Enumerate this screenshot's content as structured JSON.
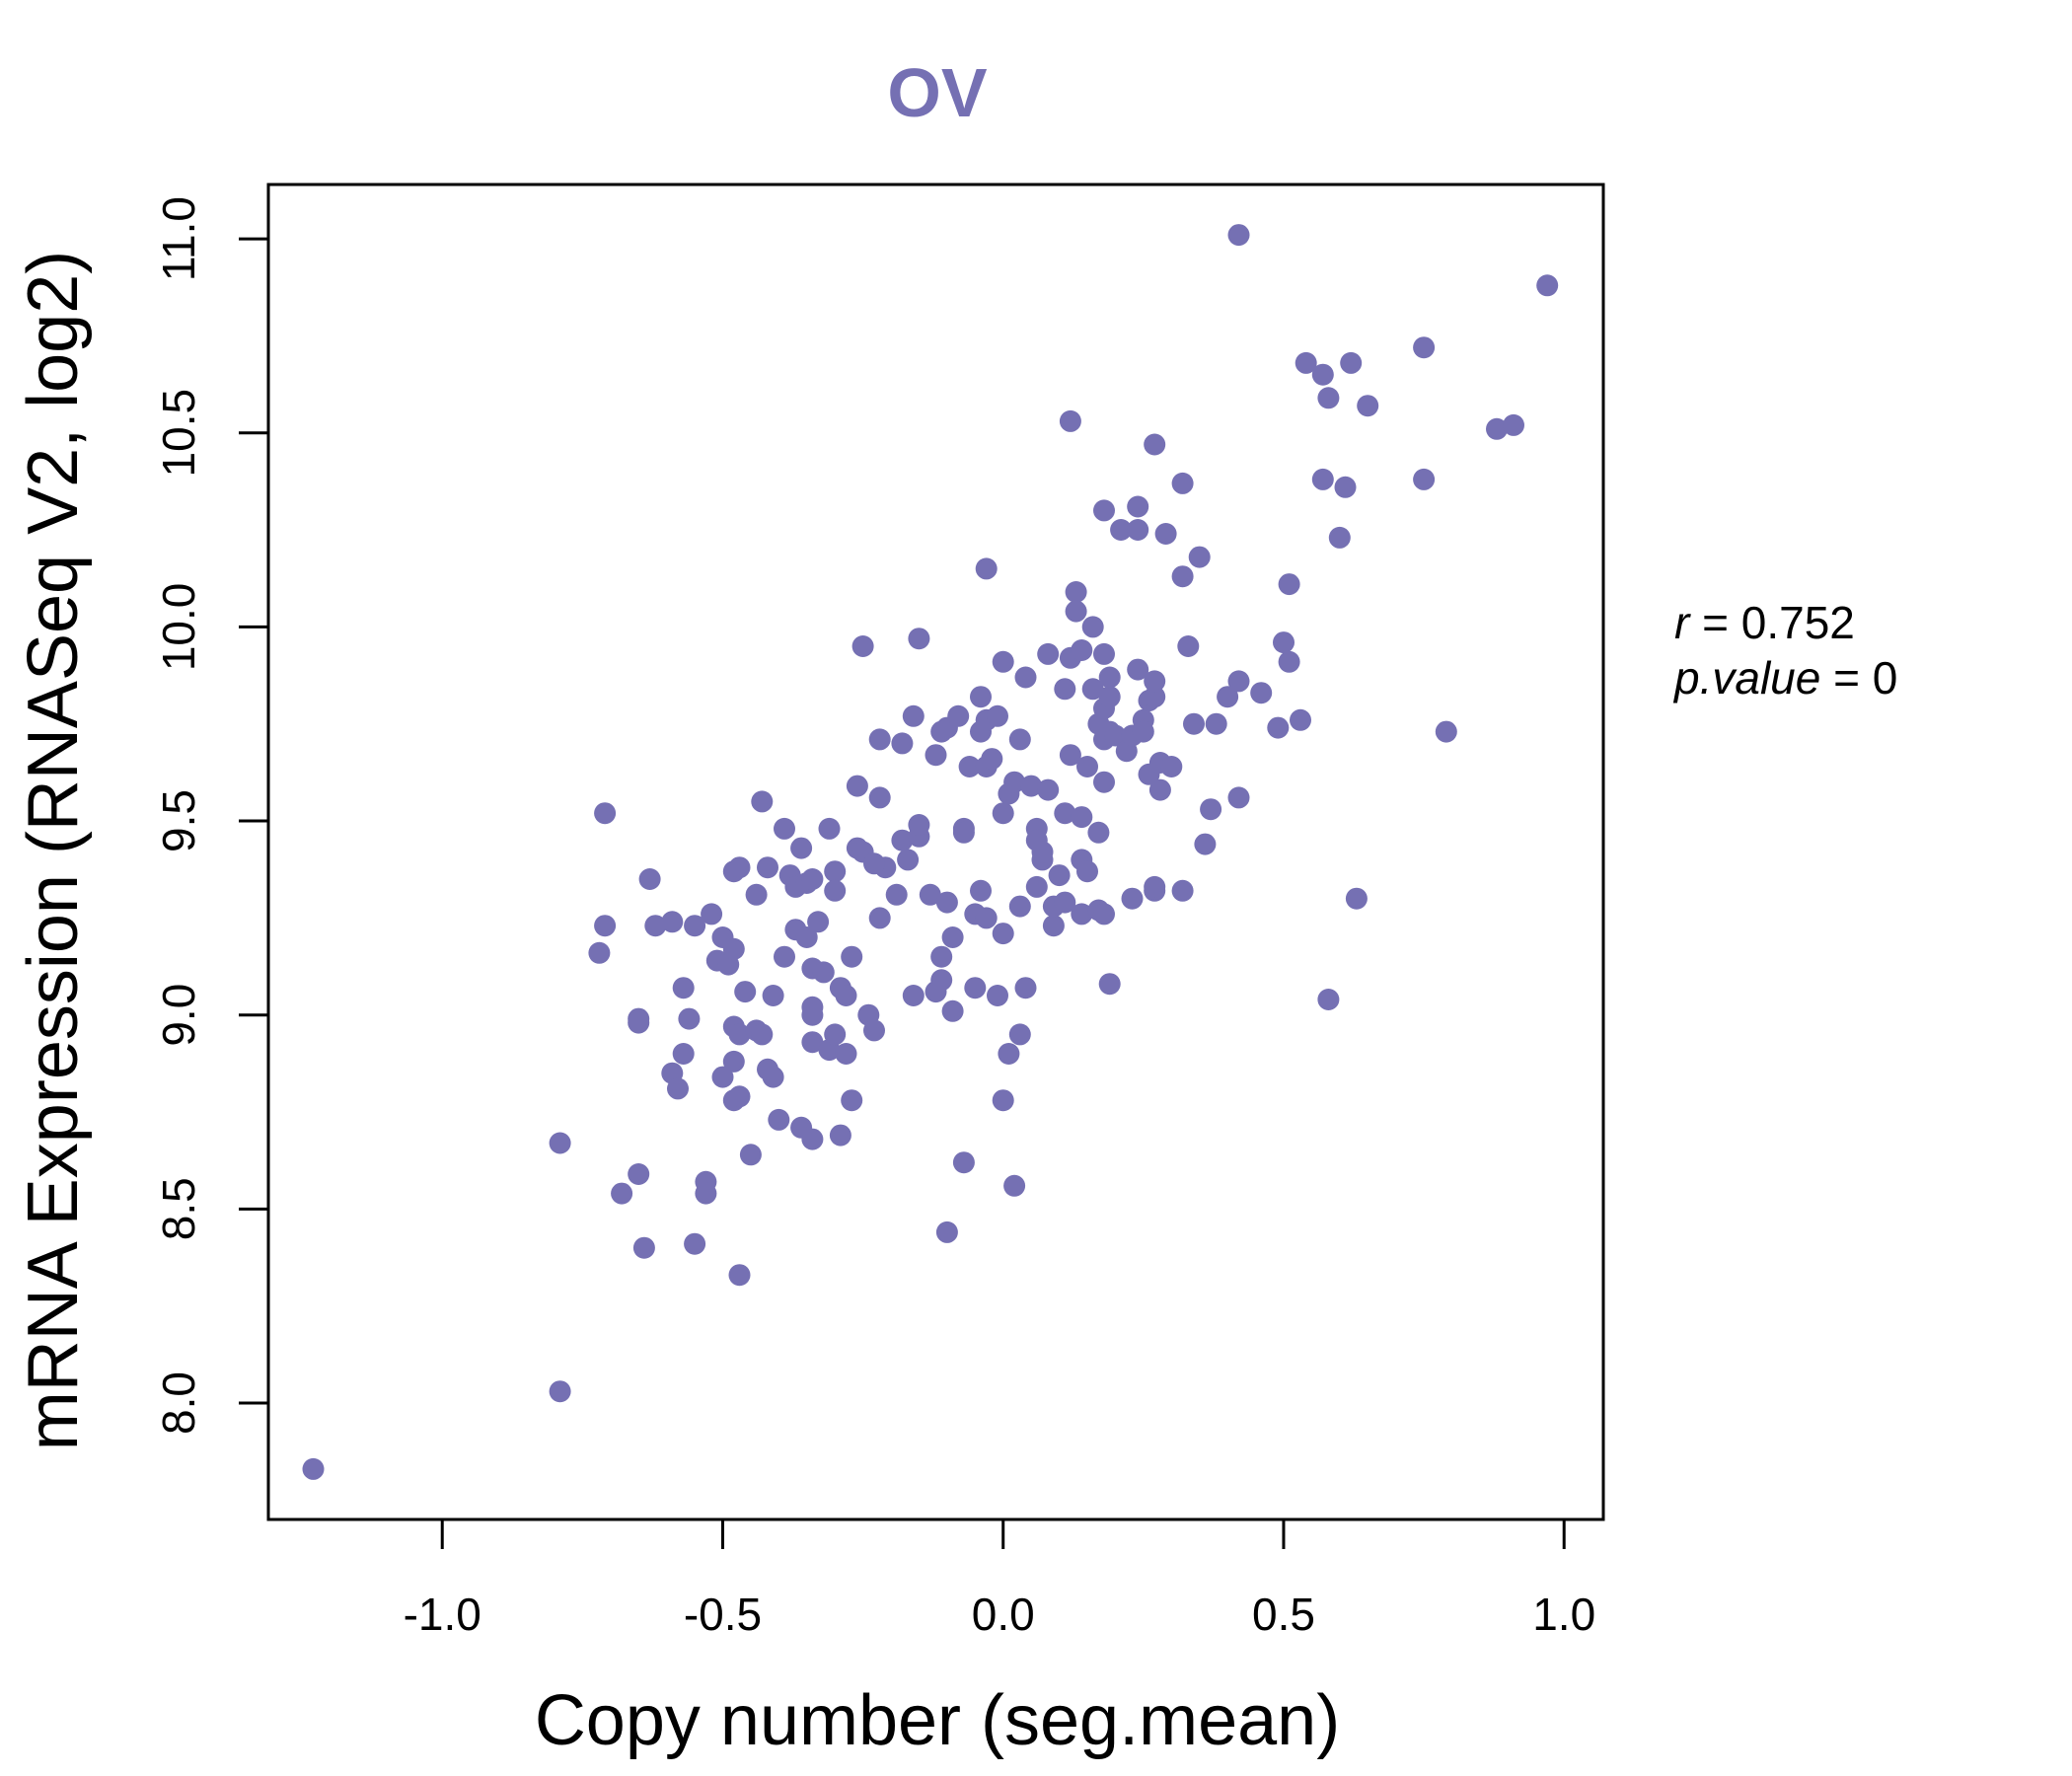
{
  "chart_data": {
    "type": "scatter",
    "title": "OV",
    "xlabel": "Copy number (seg.mean)",
    "ylabel": "mRNA Expression (RNASeq V2, log2)",
    "xlim": [
      -1.31,
      1.07
    ],
    "ylim": [
      7.7,
      11.14
    ],
    "xticks": [
      -1.0,
      -0.5,
      0.0,
      0.5,
      1.0
    ],
    "xtick_labels": [
      "-1.0",
      "-0.5",
      "0.0",
      "0.5",
      "1.0"
    ],
    "yticks": [
      8.0,
      8.5,
      9.0,
      9.5,
      10.0,
      10.5,
      11.0
    ],
    "ytick_labels": [
      "8.0",
      "8.5",
      "9.0",
      "9.5",
      "10.0",
      "10.5",
      "11.0"
    ],
    "grid": false,
    "color": "#7570b3",
    "stats": {
      "r_label": "r",
      "r_value": "0.752",
      "p_label": "p.value",
      "p_value": "0"
    },
    "points": [
      [
        -1.23,
        7.83
      ],
      [
        -0.79,
        8.03
      ],
      [
        -0.79,
        8.67
      ],
      [
        -0.68,
        8.54
      ],
      [
        -0.65,
        8.59
      ],
      [
        -0.64,
        8.4
      ],
      [
        -0.71,
        9.52
      ],
      [
        -0.71,
        9.23
      ],
      [
        -0.72,
        9.16
      ],
      [
        -0.63,
        9.35
      ],
      [
        -0.62,
        9.23
      ],
      [
        -0.59,
        9.24
      ],
      [
        -0.65,
        8.99
      ],
      [
        -0.65,
        8.98
      ],
      [
        -0.57,
        9.07
      ],
      [
        -0.57,
        8.9
      ],
      [
        -0.59,
        8.85
      ],
      [
        -0.58,
        8.81
      ],
      [
        -0.56,
        8.99
      ],
      [
        -0.55,
        9.23
      ],
      [
        -0.52,
        9.26
      ],
      [
        -0.51,
        9.14
      ],
      [
        -0.5,
        9.2
      ],
      [
        -0.49,
        9.13
      ],
      [
        -0.48,
        9.17
      ],
      [
        -0.48,
        8.97
      ],
      [
        -0.47,
        8.95
      ],
      [
        -0.48,
        8.88
      ],
      [
        -0.5,
        8.84
      ],
      [
        -0.48,
        8.78
      ],
      [
        -0.47,
        8.79
      ],
      [
        -0.53,
        8.57
      ],
      [
        -0.53,
        8.54
      ],
      [
        -0.55,
        8.41
      ],
      [
        -0.47,
        8.33
      ],
      [
        -0.45,
        8.64
      ],
      [
        -0.48,
        9.37
      ],
      [
        -0.47,
        9.38
      ],
      [
        -0.44,
        9.31
      ],
      [
        -0.43,
        9.55
      ],
      [
        -0.42,
        9.38
      ],
      [
        -0.46,
        9.06
      ],
      [
        -0.44,
        8.96
      ],
      [
        -0.43,
        8.95
      ],
      [
        -0.42,
        8.86
      ],
      [
        -0.41,
        8.84
      ],
      [
        -0.41,
        9.05
      ],
      [
        -0.4,
        8.73
      ],
      [
        -0.39,
        9.15
      ],
      [
        -0.39,
        9.48
      ],
      [
        -0.38,
        9.36
      ],
      [
        -0.37,
        9.33
      ],
      [
        -0.37,
        9.22
      ],
      [
        -0.36,
        9.43
      ],
      [
        -0.35,
        9.34
      ],
      [
        -0.35,
        9.2
      ],
      [
        -0.34,
        9.35
      ],
      [
        -0.34,
        9.12
      ],
      [
        -0.33,
        9.24
      ],
      [
        -0.32,
        9.11
      ],
      [
        -0.31,
        9.48
      ],
      [
        -0.3,
        9.37
      ],
      [
        -0.3,
        9.32
      ],
      [
        -0.29,
        9.07
      ],
      [
        -0.28,
        9.05
      ],
      [
        -0.27,
        9.15
      ],
      [
        -0.26,
        9.43
      ],
      [
        -0.25,
        9.42
      ],
      [
        -0.34,
        9.02
      ],
      [
        -0.34,
        9.0
      ],
      [
        -0.34,
        8.93
      ],
      [
        -0.31,
        8.91
      ],
      [
        -0.3,
        8.95
      ],
      [
        -0.28,
        8.9
      ],
      [
        -0.27,
        8.78
      ],
      [
        -0.36,
        8.71
      ],
      [
        -0.34,
        8.68
      ],
      [
        -0.29,
        8.69
      ],
      [
        -0.25,
        9.95
      ],
      [
        -0.26,
        9.59
      ],
      [
        -0.22,
        9.71
      ],
      [
        -0.22,
        9.56
      ],
      [
        -0.21,
        9.38
      ],
      [
        -0.22,
        9.25
      ],
      [
        -0.23,
        9.39
      ],
      [
        -0.24,
        9.0
      ],
      [
        -0.23,
        8.96
      ],
      [
        -0.18,
        9.7
      ],
      [
        -0.18,
        9.45
      ],
      [
        -0.17,
        9.4
      ],
      [
        -0.16,
        9.77
      ],
      [
        -0.15,
        9.46
      ],
      [
        -0.15,
        9.49
      ],
      [
        -0.19,
        9.31
      ],
      [
        -0.16,
        9.05
      ],
      [
        -0.15,
        9.97
      ],
      [
        -0.13,
        9.31
      ],
      [
        -0.12,
        9.67
      ],
      [
        -0.11,
        9.73
      ],
      [
        -0.1,
        9.74
      ],
      [
        -0.1,
        9.29
      ],
      [
        -0.11,
        9.15
      ],
      [
        -0.11,
        9.09
      ],
      [
        -0.09,
        9.2
      ],
      [
        -0.09,
        9.01
      ],
      [
        -0.12,
        9.06
      ],
      [
        -0.08,
        9.77
      ],
      [
        -0.07,
        9.48
      ],
      [
        -0.07,
        9.47
      ],
      [
        -0.06,
        9.64
      ],
      [
        -0.04,
        9.82
      ],
      [
        -0.04,
        9.73
      ],
      [
        -0.03,
        9.76
      ],
      [
        -0.03,
        9.64
      ],
      [
        -0.02,
        9.66
      ],
      [
        -0.01,
        9.77
      ],
      [
        0.0,
        9.91
      ],
      [
        -0.04,
        9.32
      ],
      [
        -0.05,
        9.26
      ],
      [
        -0.03,
        9.25
      ],
      [
        -0.05,
        9.07
      ],
      [
        -0.01,
        9.05
      ],
      [
        0.0,
        9.21
      ],
      [
        -0.07,
        8.62
      ],
      [
        -0.1,
        8.44
      ],
      [
        -0.03,
        10.15
      ],
      [
        0.0,
        9.52
      ],
      [
        0.01,
        9.57
      ],
      [
        0.02,
        9.6
      ],
      [
        0.03,
        9.71
      ],
      [
        0.04,
        9.87
      ],
      [
        0.05,
        9.59
      ],
      [
        0.06,
        9.48
      ],
      [
        0.06,
        9.45
      ],
      [
        0.07,
        9.4
      ],
      [
        0.07,
        9.42
      ],
      [
        0.06,
        9.33
      ],
      [
        0.03,
        9.28
      ],
      [
        0.04,
        9.07
      ],
      [
        0.03,
        8.95
      ],
      [
        0.01,
        8.9
      ],
      [
        0.0,
        8.78
      ],
      [
        0.02,
        8.56
      ],
      [
        0.08,
        9.93
      ],
      [
        0.08,
        9.58
      ],
      [
        0.09,
        9.23
      ],
      [
        0.09,
        9.28
      ],
      [
        0.1,
        9.36
      ],
      [
        0.11,
        9.52
      ],
      [
        0.11,
        9.29
      ],
      [
        0.11,
        9.84
      ],
      [
        0.12,
        9.92
      ],
      [
        0.12,
        9.67
      ],
      [
        0.13,
        10.09
      ],
      [
        0.13,
        10.04
      ],
      [
        0.14,
        9.94
      ],
      [
        0.14,
        9.51
      ],
      [
        0.14,
        9.4
      ],
      [
        0.14,
        9.26
      ],
      [
        0.15,
        9.37
      ],
      [
        0.15,
        9.64
      ],
      [
        0.16,
        10.0
      ],
      [
        0.16,
        9.84
      ],
      [
        0.17,
        9.47
      ],
      [
        0.17,
        9.75
      ],
      [
        0.18,
        9.93
      ],
      [
        0.18,
        9.79
      ],
      [
        0.18,
        9.71
      ],
      [
        0.19,
        9.82
      ],
      [
        0.19,
        9.87
      ],
      [
        0.19,
        9.73
      ],
      [
        0.2,
        9.72
      ],
      [
        0.18,
        9.6
      ],
      [
        0.17,
        9.27
      ],
      [
        0.18,
        9.26
      ],
      [
        0.19,
        9.08
      ],
      [
        0.12,
        10.53
      ],
      [
        0.18,
        10.3
      ],
      [
        0.21,
        10.25
      ],
      [
        0.22,
        9.68
      ],
      [
        0.23,
        9.72
      ],
      [
        0.23,
        9.3
      ],
      [
        0.24,
        10.31
      ],
      [
        0.24,
        10.25
      ],
      [
        0.24,
        9.89
      ],
      [
        0.25,
        9.76
      ],
      [
        0.25,
        9.73
      ],
      [
        0.26,
        9.81
      ],
      [
        0.26,
        9.62
      ],
      [
        0.27,
        9.82
      ],
      [
        0.27,
        9.86
      ],
      [
        0.28,
        9.65
      ],
      [
        0.28,
        9.58
      ],
      [
        0.29,
        10.24
      ],
      [
        0.3,
        9.64
      ],
      [
        0.27,
        9.32
      ],
      [
        0.27,
        9.33
      ],
      [
        0.27,
        10.47
      ],
      [
        0.32,
        10.37
      ],
      [
        0.32,
        10.13
      ],
      [
        0.33,
        9.95
      ],
      [
        0.32,
        9.32
      ],
      [
        0.34,
        9.75
      ],
      [
        0.35,
        10.18
      ],
      [
        0.36,
        9.44
      ],
      [
        0.37,
        9.53
      ],
      [
        0.38,
        9.75
      ],
      [
        0.4,
        9.82
      ],
      [
        0.42,
        11.01
      ],
      [
        0.42,
        9.86
      ],
      [
        0.42,
        9.56
      ],
      [
        0.46,
        9.83
      ],
      [
        0.49,
        9.74
      ],
      [
        0.5,
        9.96
      ],
      [
        0.51,
        10.11
      ],
      [
        0.51,
        9.91
      ],
      [
        0.53,
        9.76
      ],
      [
        0.54,
        10.68
      ],
      [
        0.57,
        10.65
      ],
      [
        0.58,
        10.59
      ],
      [
        0.57,
        10.38
      ],
      [
        0.6,
        10.23
      ],
      [
        0.61,
        10.36
      ],
      [
        0.62,
        10.68
      ],
      [
        0.63,
        9.3
      ],
      [
        0.58,
        9.04
      ],
      [
        0.65,
        10.57
      ],
      [
        0.75,
        10.72
      ],
      [
        0.75,
        10.38
      ],
      [
        0.79,
        9.73
      ],
      [
        0.88,
        10.51
      ],
      [
        0.91,
        10.52
      ],
      [
        0.97,
        10.88
      ]
    ]
  }
}
